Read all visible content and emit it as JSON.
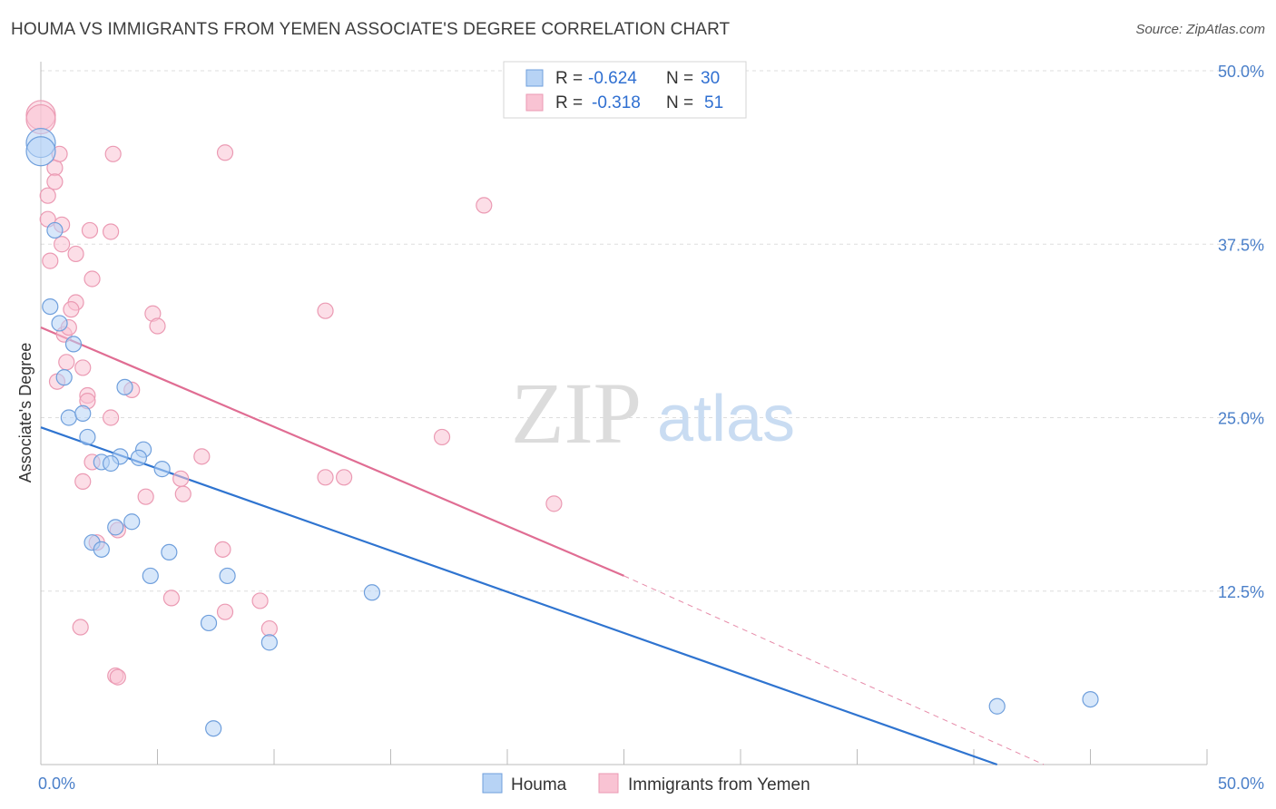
{
  "title": "HOUMA VS IMMIGRANTS FROM YEMEN ASSOCIATE'S DEGREE CORRELATION CHART",
  "source": "Source: ZipAtlas.com",
  "watermark": {
    "zip": "ZIP",
    "atlas": "atlas"
  },
  "colors": {
    "houma_fill": "#b7d3f5",
    "houma_stroke": "#6f9fdc",
    "houma_line": "#2f74d0",
    "yemen_fill": "#f9c3d3",
    "yemen_stroke": "#eb9ab3",
    "yemen_line": "#e06d93",
    "grid": "#dddddd",
    "tick_label": "#4a7fc9"
  },
  "legend": {
    "houma": {
      "r_label": "R =",
      "r_value": "-0.624",
      "n_label": "N =",
      "n_value": "30"
    },
    "yemen": {
      "r_label": "R =",
      "r_value": "-0.318",
      "n_label": "N =",
      "n_value": "51"
    }
  },
  "chart_data": {
    "type": "scatter",
    "xlabel": "",
    "ylabel": "Associate's Degree",
    "xlim": [
      0,
      50
    ],
    "ylim": [
      0,
      50
    ],
    "x_tick_labels": [
      "0.0%",
      "50.0%"
    ],
    "y_tick_labels": [
      "12.5%",
      "25.0%",
      "37.5%",
      "50.0%"
    ],
    "y_ticks": [
      12.5,
      25.0,
      37.5,
      50.0
    ],
    "grid": true,
    "legend_position": "top-center",
    "series": [
      {
        "name": "Houma",
        "r": -0.624,
        "n": 30,
        "trend": {
          "x0": 0,
          "y0": 24.3,
          "x1": 41,
          "y1": 0
        },
        "points": [
          [
            0.0,
            44.8
          ],
          [
            0.6,
            38.5
          ],
          [
            0.4,
            33.0
          ],
          [
            0.8,
            31.8
          ],
          [
            1.4,
            30.3
          ],
          [
            1.0,
            27.9
          ],
          [
            3.6,
            27.2
          ],
          [
            1.2,
            25.0
          ],
          [
            1.8,
            25.3
          ],
          [
            2.0,
            23.6
          ],
          [
            4.4,
            22.7
          ],
          [
            3.4,
            22.2
          ],
          [
            2.6,
            21.8
          ],
          [
            4.2,
            22.1
          ],
          [
            3.0,
            21.7
          ],
          [
            5.2,
            21.3
          ],
          [
            3.9,
            17.5
          ],
          [
            3.2,
            17.1
          ],
          [
            2.2,
            16.0
          ],
          [
            2.6,
            15.5
          ],
          [
            5.5,
            15.3
          ],
          [
            4.7,
            13.6
          ],
          [
            8.0,
            13.6
          ],
          [
            14.2,
            12.4
          ],
          [
            7.2,
            10.2
          ],
          [
            9.8,
            8.8
          ],
          [
            7.4,
            2.6
          ],
          [
            41.0,
            4.2
          ],
          [
            45.0,
            4.7
          ],
          [
            0.0,
            44.2
          ]
        ]
      },
      {
        "name": "Immigrants from Yemen",
        "r": -0.318,
        "n": 51,
        "trend": {
          "x0": 0,
          "y0": 31.5,
          "x1": 25,
          "y1": 13.6,
          "dash_x1": 43,
          "dash_y1": 0
        },
        "points": [
          [
            0.0,
            46.8
          ],
          [
            0.0,
            46.5
          ],
          [
            0.6,
            43.0
          ],
          [
            0.8,
            44.0
          ],
          [
            0.6,
            42.0
          ],
          [
            0.3,
            41.0
          ],
          [
            3.1,
            44.0
          ],
          [
            7.9,
            44.1
          ],
          [
            19.0,
            40.3
          ],
          [
            0.3,
            39.3
          ],
          [
            0.9,
            38.9
          ],
          [
            2.1,
            38.5
          ],
          [
            3.0,
            38.4
          ],
          [
            0.9,
            37.5
          ],
          [
            1.5,
            36.8
          ],
          [
            0.4,
            36.3
          ],
          [
            2.2,
            35.0
          ],
          [
            1.5,
            33.3
          ],
          [
            1.3,
            32.8
          ],
          [
            4.8,
            32.5
          ],
          [
            12.2,
            32.7
          ],
          [
            5.0,
            31.6
          ],
          [
            1.0,
            31.0
          ],
          [
            1.2,
            31.5
          ],
          [
            1.1,
            29.0
          ],
          [
            0.7,
            27.6
          ],
          [
            3.9,
            27.0
          ],
          [
            2.0,
            26.6
          ],
          [
            2.0,
            26.2
          ],
          [
            3.0,
            25.0
          ],
          [
            17.2,
            23.6
          ],
          [
            6.9,
            22.2
          ],
          [
            2.2,
            21.8
          ],
          [
            1.8,
            20.4
          ],
          [
            6.0,
            20.6
          ],
          [
            12.2,
            20.7
          ],
          [
            13.0,
            20.7
          ],
          [
            4.5,
            19.3
          ],
          [
            6.1,
            19.5
          ],
          [
            22.0,
            18.8
          ],
          [
            3.3,
            16.9
          ],
          [
            2.4,
            16.0
          ],
          [
            7.8,
            15.5
          ],
          [
            5.6,
            12.0
          ],
          [
            9.4,
            11.8
          ],
          [
            7.9,
            11.0
          ],
          [
            1.7,
            9.9
          ],
          [
            9.8,
            9.8
          ],
          [
            3.2,
            6.4
          ],
          [
            3.3,
            6.3
          ],
          [
            1.8,
            28.6
          ]
        ]
      }
    ]
  },
  "bottom_legend": [
    "Houma",
    "Immigrants from Yemen"
  ]
}
